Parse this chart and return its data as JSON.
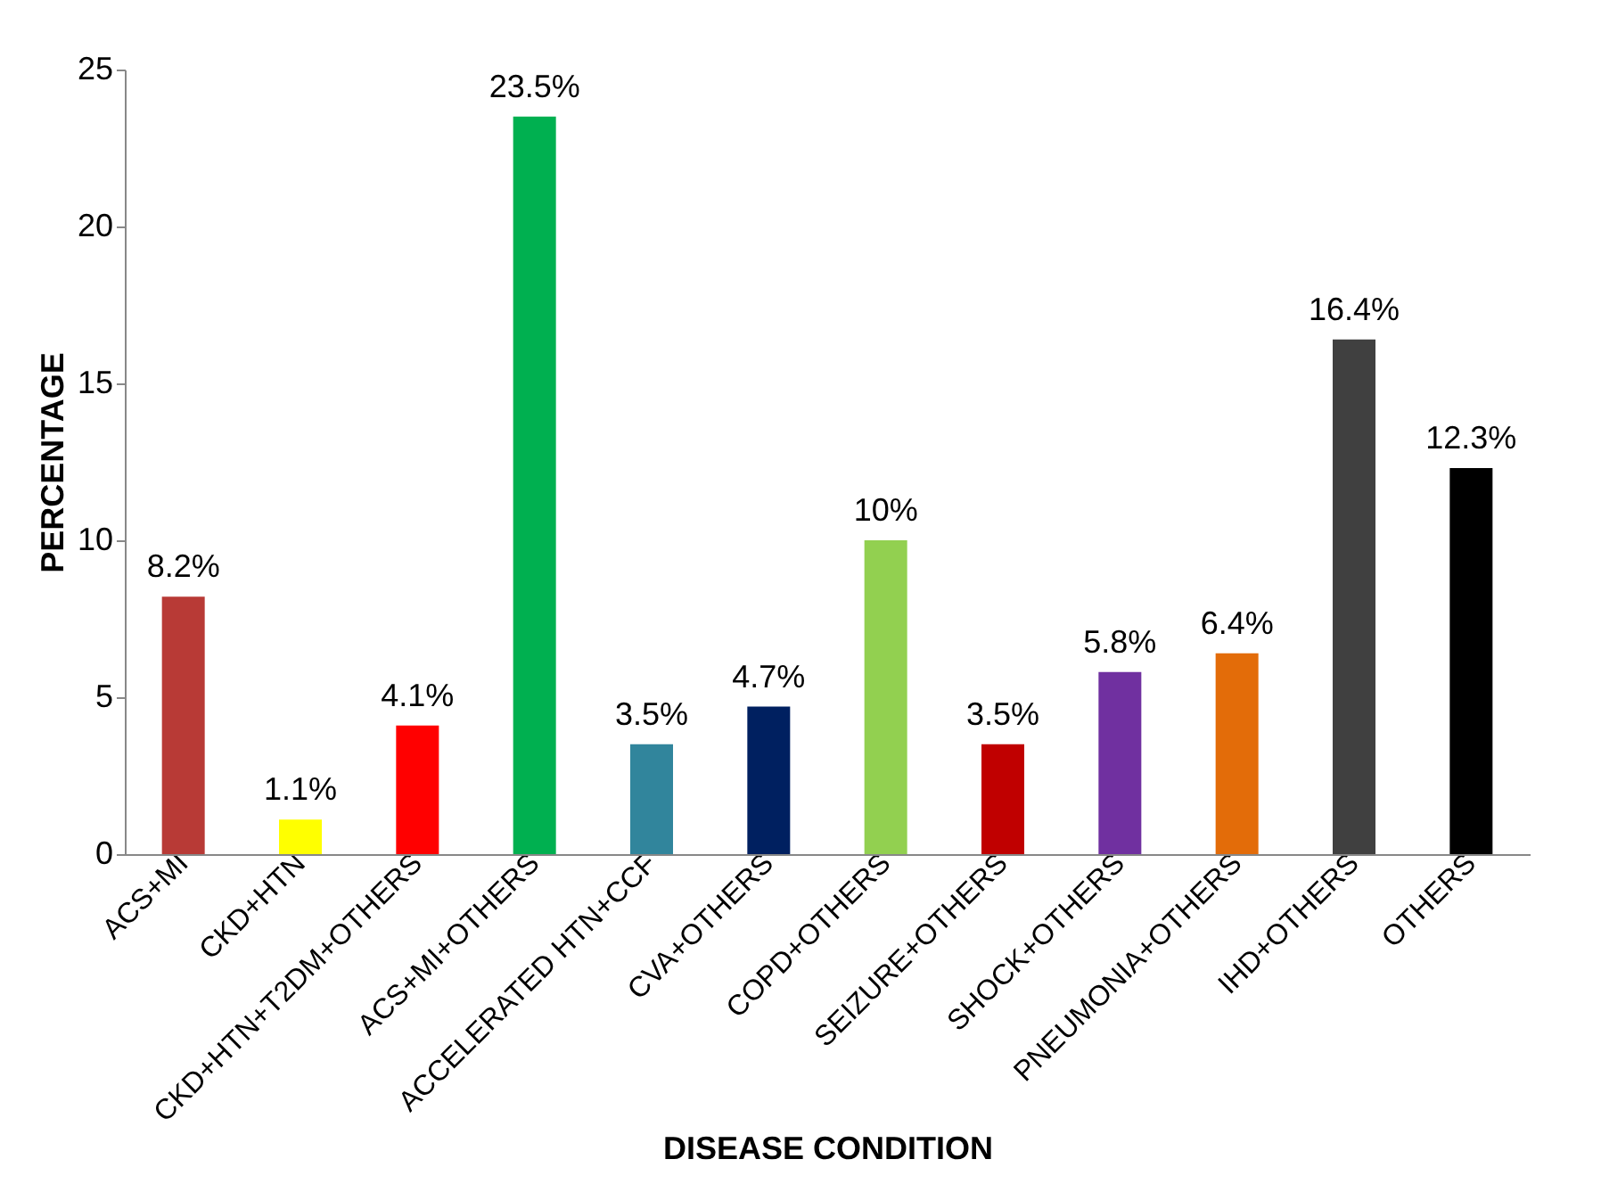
{
  "chart_data": {
    "type": "bar",
    "xlabel": "DISEASE CONDITION",
    "ylabel": "PERCENTAGE",
    "categories": [
      "ACS+MI",
      "CKD+HTN",
      "CKD+HTN+T2DM+OTHERS",
      "ACS+MI+OTHERS",
      "ACCELERATED HTN+CCF",
      "CVA+OTHERS",
      "COPD+OTHERS",
      "SEIZURE+OTHERS",
      "SHOCK+OTHERS",
      "PNEUMONIA+OTHERS",
      "IHD+OTHERS",
      "OTHERS"
    ],
    "values": [
      8.2,
      1.1,
      4.1,
      23.5,
      3.5,
      4.7,
      10,
      3.5,
      5.8,
      6.4,
      16.4,
      12.3
    ],
    "value_labels": [
      "8.2%",
      "1.1%",
      "4.1%",
      "23.5%",
      "3.5%",
      "4.7%",
      "10%",
      "3.5%",
      "5.8%",
      "6.4%",
      "16.4%",
      "12.3%"
    ],
    "colors": [
      "#b83a36",
      "#ffff00",
      "#ff0000",
      "#00b050",
      "#31859c",
      "#002060",
      "#92d050",
      "#c00000",
      "#7030a0",
      "#e36c09",
      "#404040",
      "#000000"
    ],
    "ylim": [
      0,
      25
    ],
    "yticks": [
      0,
      5,
      10,
      15,
      20,
      25
    ],
    "grid": false
  }
}
